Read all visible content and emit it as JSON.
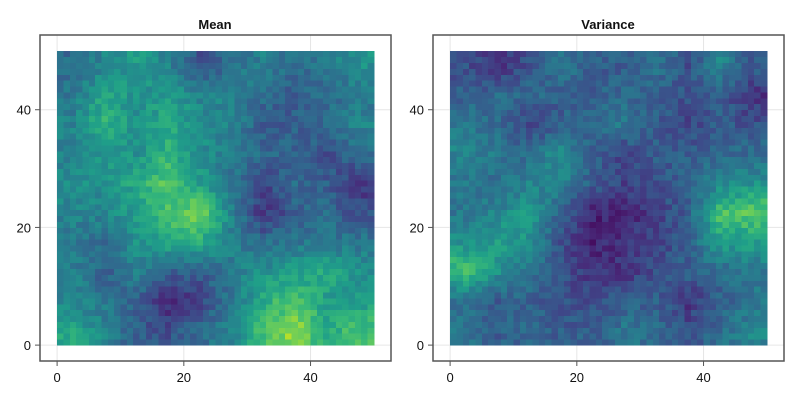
{
  "chart_data": [
    {
      "type": "heatmap",
      "title": "Mean",
      "xlabel": "",
      "ylabel": "",
      "xlim": [
        -2.7,
        52.7
      ],
      "ylim": [
        -2.7,
        52.7
      ],
      "xticks": [
        0,
        20,
        40
      ],
      "yticks": [
        0,
        20,
        40
      ],
      "grid": true,
      "colormap": "viridis",
      "grid_extent": [
        0,
        50
      ],
      "resolution": 50,
      "note_values": "coarse 10x10 normalized (0-1) approximation, rows listed top (y=50) to bottom (y=0)",
      "coarse": [
        [
          0.35,
          0.45,
          0.55,
          0.45,
          0.25,
          0.35,
          0.45,
          0.35,
          0.4,
          0.5
        ],
        [
          0.4,
          0.6,
          0.5,
          0.55,
          0.45,
          0.45,
          0.35,
          0.3,
          0.35,
          0.4
        ],
        [
          0.45,
          0.65,
          0.5,
          0.6,
          0.5,
          0.45,
          0.3,
          0.3,
          0.35,
          0.45
        ],
        [
          0.45,
          0.55,
          0.5,
          0.65,
          0.5,
          0.4,
          0.35,
          0.3,
          0.25,
          0.35
        ],
        [
          0.5,
          0.5,
          0.6,
          0.75,
          0.55,
          0.4,
          0.2,
          0.35,
          0.3,
          0.15
        ],
        [
          0.45,
          0.45,
          0.55,
          0.7,
          0.8,
          0.45,
          0.15,
          0.3,
          0.35,
          0.25
        ],
        [
          0.4,
          0.35,
          0.5,
          0.6,
          0.6,
          0.45,
          0.35,
          0.4,
          0.4,
          0.4
        ],
        [
          0.45,
          0.3,
          0.45,
          0.3,
          0.3,
          0.4,
          0.5,
          0.55,
          0.6,
          0.5
        ],
        [
          0.45,
          0.4,
          0.3,
          0.1,
          0.2,
          0.4,
          0.6,
          0.75,
          0.55,
          0.55
        ],
        [
          0.6,
          0.45,
          0.3,
          0.25,
          0.35,
          0.45,
          0.7,
          0.85,
          0.6,
          0.7
        ]
      ]
    },
    {
      "type": "heatmap",
      "title": "Variance",
      "xlabel": "",
      "ylabel": "",
      "xlim": [
        -2.7,
        52.7
      ],
      "ylim": [
        -2.7,
        52.7
      ],
      "xticks": [
        0,
        20,
        40
      ],
      "yticks": [
        0,
        20,
        40
      ],
      "grid": true,
      "colormap": "viridis",
      "grid_extent": [
        0,
        50
      ],
      "resolution": 50,
      "note_values": "coarse 10x10 normalized (0-1) approximation, rows listed top (y=50) to bottom (y=0)",
      "coarse": [
        [
          0.25,
          0.15,
          0.25,
          0.4,
          0.3,
          0.3,
          0.4,
          0.25,
          0.45,
          0.3
        ],
        [
          0.3,
          0.35,
          0.35,
          0.3,
          0.3,
          0.35,
          0.3,
          0.25,
          0.3,
          0.15
        ],
        [
          0.4,
          0.35,
          0.2,
          0.3,
          0.35,
          0.4,
          0.3,
          0.2,
          0.3,
          0.25
        ],
        [
          0.45,
          0.4,
          0.35,
          0.5,
          0.3,
          0.2,
          0.3,
          0.3,
          0.35,
          0.35
        ],
        [
          0.4,
          0.35,
          0.45,
          0.45,
          0.3,
          0.2,
          0.25,
          0.3,
          0.45,
          0.5
        ],
        [
          0.4,
          0.45,
          0.55,
          0.3,
          0.1,
          0.1,
          0.2,
          0.3,
          0.7,
          0.75
        ],
        [
          0.5,
          0.55,
          0.5,
          0.25,
          0.1,
          0.15,
          0.2,
          0.3,
          0.55,
          0.55
        ],
        [
          0.7,
          0.5,
          0.4,
          0.25,
          0.15,
          0.15,
          0.25,
          0.3,
          0.35,
          0.4
        ],
        [
          0.35,
          0.3,
          0.3,
          0.25,
          0.25,
          0.3,
          0.3,
          0.15,
          0.3,
          0.4
        ],
        [
          0.4,
          0.3,
          0.35,
          0.3,
          0.3,
          0.4,
          0.35,
          0.25,
          0.35,
          0.45
        ]
      ]
    }
  ]
}
